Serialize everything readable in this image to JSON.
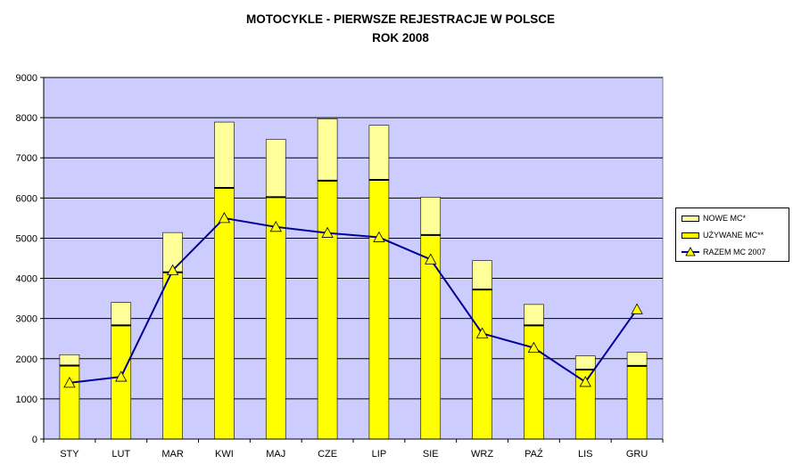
{
  "chart_data": {
    "type": "bar",
    "title": "MOTOCYKLE - PIERWSZE REJESTRACJE W POLSCE",
    "subtitle": "ROK 2008",
    "categories": [
      "STY",
      "LUT",
      "MAR",
      "KWI",
      "MAJ",
      "CZE",
      "LIP",
      "SIE",
      "WRZ",
      "PAŹ",
      "LIS",
      "GRU"
    ],
    "stacked": true,
    "ylim": [
      0,
      9000
    ],
    "yticks": [
      "0",
      "1000",
      "2000",
      "3000",
      "4000",
      "5000",
      "6000",
      "7000",
      "8000",
      "9000"
    ],
    "grid": true,
    "legend_position": "right",
    "series": [
      {
        "name": "UŻYWANE MC**",
        "kind": "bar",
        "color": "#ffff00",
        "values": [
          1830,
          2830,
          4150,
          6250,
          6020,
          6430,
          6450,
          5080,
          3720,
          2830,
          1730,
          1820
        ]
      },
      {
        "name": "NOWE MC*",
        "kind": "bar",
        "color": "#ffff99",
        "values": [
          270,
          570,
          990,
          1640,
          1440,
          1540,
          1360,
          940,
          720,
          520,
          340,
          340
        ]
      },
      {
        "name": "RAZEM MC 2007",
        "kind": "line",
        "color": "#000099",
        "marker": "triangle",
        "marker_color": "#ffff00",
        "values": [
          1400,
          1550,
          4200,
          5500,
          5280,
          5130,
          5020,
          4470,
          2630,
          2270,
          1420,
          3230
        ]
      }
    ],
    "colors": {
      "plot_bg": "#ccccff",
      "grid": "#000000",
      "bar_border": "#000000"
    }
  }
}
